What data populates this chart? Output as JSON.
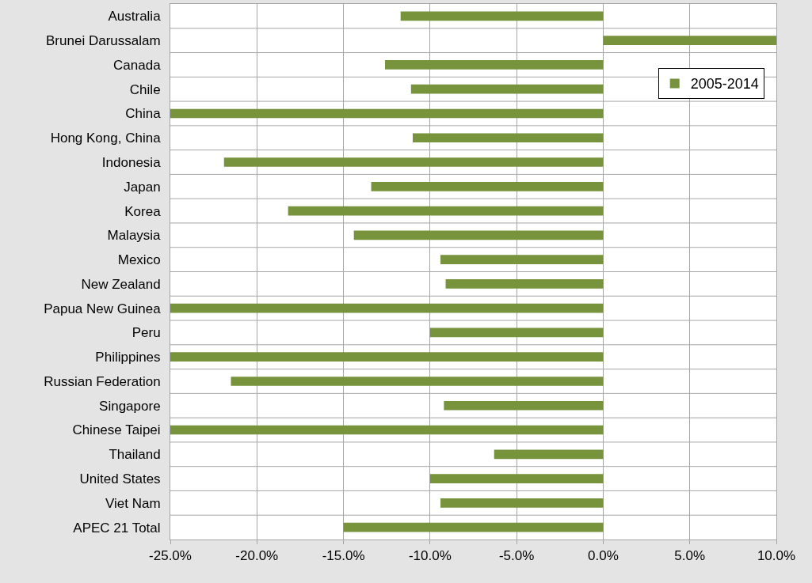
{
  "chart_data": {
    "type": "bar",
    "orientation": "horizontal",
    "categories": [
      "Australia",
      "Brunei Darussalam",
      "Canada",
      "Chile",
      "China",
      "Hong Kong, China",
      "Indonesia",
      "Japan",
      "Korea",
      "Malaysia",
      "Mexico",
      "New Zealand",
      "Papua New Guinea",
      "Peru",
      "Philippines",
      "Russian Federation",
      "Singapore",
      "Chinese Taipei",
      "Thailand",
      "United States",
      "Viet Nam",
      "APEC 21 Total"
    ],
    "series": [
      {
        "name": "2005-2014",
        "color": "#77933c",
        "values": [
          -11.7,
          10,
          -12.6,
          -11.1,
          -25,
          -11.0,
          -21.9,
          -13.4,
          -18.2,
          -14.4,
          -9.4,
          -9.1,
          -25,
          -10.0,
          -25,
          -21.5,
          -9.2,
          -25,
          -6.3,
          -10.0,
          -9.4,
          -15.0
        ]
      }
    ],
    "xlim": [
      -25,
      10
    ],
    "xticks": [
      {
        "value": -25,
        "label": "-25.0%"
      },
      {
        "value": -20,
        "label": "-20.0%"
      },
      {
        "value": -15,
        "label": "-15.0%"
      },
      {
        "value": -10,
        "label": "-10.0%"
      },
      {
        "value": -5,
        "label": "-5.0%"
      },
      {
        "value": 0,
        "label": "0.0%"
      },
      {
        "value": 5,
        "label": "5.0%"
      },
      {
        "value": 10,
        "label": "10.0%"
      }
    ],
    "grid": true,
    "legend": "top right"
  }
}
